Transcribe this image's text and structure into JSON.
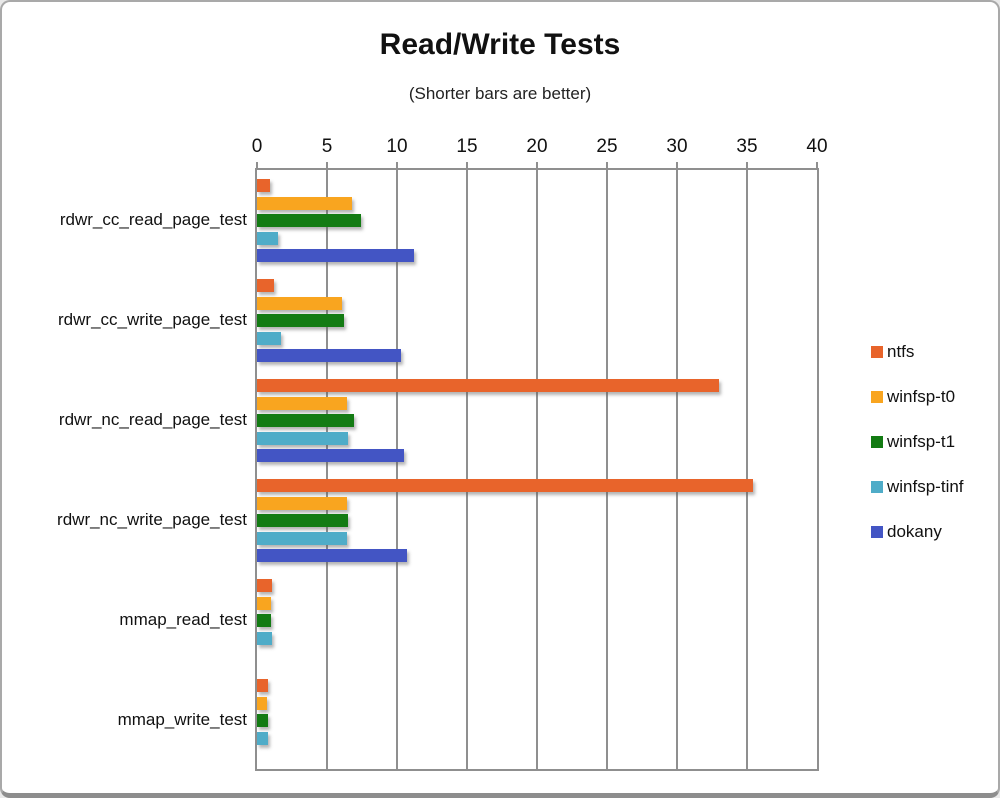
{
  "header": {
    "title": "Read/Write Tests",
    "subtitle": "(Shorter bars are better)"
  },
  "chart_data": {
    "type": "bar",
    "orientation": "horizontal",
    "title": "Read/Write Tests",
    "subtitle": "(Shorter bars are better)",
    "categories": [
      "rdwr_cc_read_page_test",
      "rdwr_cc_write_page_test",
      "rdwr_nc_read_page_test",
      "rdwr_nc_write_page_test",
      "mmap_read_test",
      "mmap_write_test"
    ],
    "series": [
      {
        "name": "ntfs",
        "color": "#E8642B",
        "values": [
          0.95,
          1.2,
          33.0,
          35.4,
          1.05,
          0.8
        ]
      },
      {
        "name": "winfsp-t0",
        "color": "#F9A51F",
        "values": [
          6.8,
          6.1,
          6.4,
          6.4,
          1.0,
          0.7
        ]
      },
      {
        "name": "winfsp-t1",
        "color": "#137B13",
        "values": [
          7.4,
          6.2,
          6.9,
          6.5,
          1.0,
          0.8
        ]
      },
      {
        "name": "winfsp-tinf",
        "color": "#4FACC8",
        "values": [
          1.5,
          1.7,
          6.5,
          6.4,
          1.1,
          0.8
        ]
      },
      {
        "name": "dokany",
        "color": "#4355C4",
        "values": [
          11.2,
          10.3,
          10.5,
          10.7,
          null,
          null
        ]
      }
    ],
    "x_axis": {
      "min": 0,
      "max": 40,
      "ticks": [
        0,
        5,
        10,
        15,
        20,
        25,
        30,
        35,
        40
      ],
      "position": "top"
    },
    "grid": true,
    "gridline_color": "#8f8f8f",
    "legend_position": "right"
  }
}
